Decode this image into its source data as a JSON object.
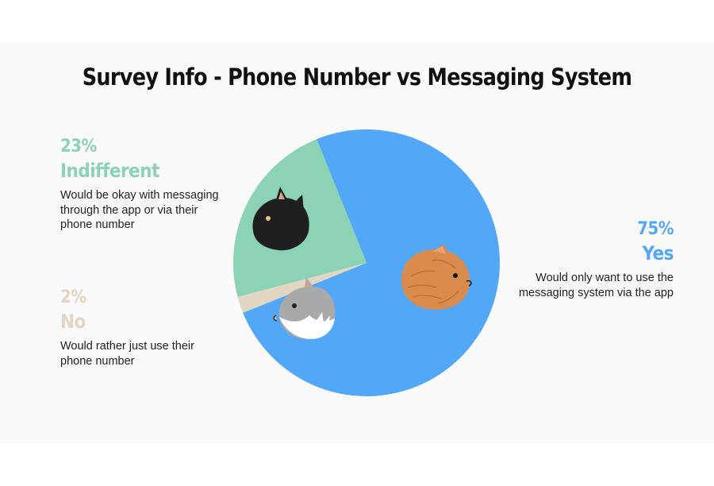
{
  "colors": {
    "yes": "#52a8f7",
    "indifferent": "#8cd2b5",
    "no": "#e2d6c3",
    "background": "#fafafa"
  },
  "chart_data": {
    "type": "pie",
    "title": "Survey Info - Phone Number vs Messaging System",
    "slices": [
      {
        "key": "yes",
        "label": "Yes",
        "percent_label": "75%",
        "value": 75,
        "description": "Would only want to use the messaging system via the app",
        "color": "#52a8f7",
        "icon": "orange-cat-icon"
      },
      {
        "key": "no",
        "label": "No",
        "percent_label": "2%",
        "value": 2,
        "description": "Would rather just use their phone number",
        "color": "#e2d6c3",
        "icon": "grey-white-cat-icon"
      },
      {
        "key": "indifferent",
        "label": "Indifferent",
        "percent_label": "23%",
        "value": 23,
        "description": "Would be okay with messaging through the app or via their phone number",
        "color": "#8cd2b5",
        "icon": "black-cat-icon"
      }
    ]
  }
}
